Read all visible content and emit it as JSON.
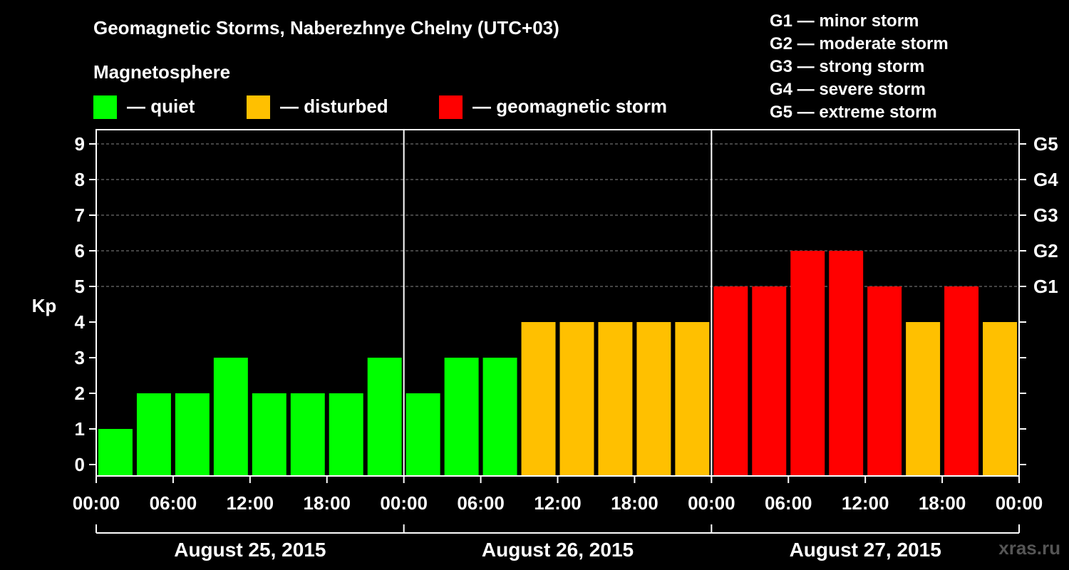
{
  "title": "Geomagnetic Storms, Naberezhnye Chelny (UTC+03)",
  "magnetosphere": {
    "title": "Magnetosphere",
    "items": [
      {
        "label": "— quiet",
        "color": "#00ff00"
      },
      {
        "label": "— disturbed",
        "color": "#ffc000"
      },
      {
        "label": "— geomagnetic storm",
        "color": "#ff0000"
      }
    ]
  },
  "storm_levels": [
    {
      "label": "G1 — minor storm"
    },
    {
      "label": "G2 — moderate storm"
    },
    {
      "label": "G3 — strong storm"
    },
    {
      "label": "G4 — severe storm"
    },
    {
      "label": "G5 — extreme storm"
    }
  ],
  "watermark": "xras.ru",
  "chart_data": {
    "type": "bar",
    "title": "Geomagnetic Storms, Naberezhnye Chelny (UTC+03)",
    "ylabel": "Kp",
    "ylim": [
      0,
      9
    ],
    "yticks": [
      "0",
      "1",
      "2",
      "3",
      "4",
      "5",
      "6",
      "7",
      "8",
      "9"
    ],
    "right_ticks": [
      {
        "value": 5,
        "label": "G1"
      },
      {
        "value": 6,
        "label": "G2"
      },
      {
        "value": 7,
        "label": "G3"
      },
      {
        "value": 8,
        "label": "G4"
      },
      {
        "value": 9,
        "label": "G5"
      }
    ],
    "gridlines": [
      5,
      6,
      7,
      8,
      9
    ],
    "xtick_labels": [
      "00:00",
      "06:00",
      "12:00",
      "18:00",
      "00:00",
      "06:00",
      "12:00",
      "18:00",
      "00:00",
      "06:00",
      "12:00",
      "18:00",
      "00:00"
    ],
    "days": [
      "August 25, 2015",
      "August 26, 2015",
      "August 27, 2015"
    ],
    "values": [
      1,
      2,
      2,
      3,
      2,
      2,
      2,
      3,
      2,
      3,
      3,
      4,
      4,
      4,
      4,
      4,
      5,
      5,
      6,
      6,
      5,
      4,
      5,
      4
    ],
    "color_rule": {
      "quiet": "Kp <= 3",
      "disturbed": "Kp = 4",
      "geomagnetic storm": "Kp >= 5"
    },
    "colors": {
      "quiet": "#00ff00",
      "disturbed": "#ffc000",
      "storm": "#ff0000"
    }
  }
}
